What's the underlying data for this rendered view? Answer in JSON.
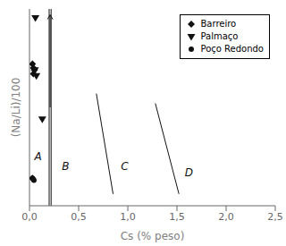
{
  "chart_data": {
    "type": "scatter",
    "xlabel": "Cs (% peso)",
    "ylabel": "(Na/Li)/100",
    "xlim": [
      0.0,
      2.5
    ],
    "ylim": [
      0.0,
      1.0
    ],
    "xticks": [
      {
        "value": 0.0,
        "label": "0,0"
      },
      {
        "value": 0.5,
        "label": "0,5"
      },
      {
        "value": 1.0,
        "label": "1,0"
      },
      {
        "value": 1.5,
        "label": "1,5"
      },
      {
        "value": 2.0,
        "label": "2,0"
      },
      {
        "value": 2.5,
        "label": "2,5"
      }
    ],
    "yticks": [],
    "tick_labels": "x",
    "legend": "upper right",
    "series": [
      {
        "name": "Barreiro",
        "color": "#111111",
        "marker": "diamond",
        "x": [
          0.03,
          0.04,
          0.05,
          0.04,
          0.03
        ],
        "values": [
          0.72,
          0.7,
          0.69,
          0.67,
          0.14
        ]
      },
      {
        "name": "Palmaço",
        "color": "#111111",
        "marker": "triangle_down",
        "x": [
          0.06,
          0.055,
          0.07,
          0.13
        ],
        "values": [
          0.955,
          0.69,
          0.66,
          0.44
        ]
      },
      {
        "name": "Poço Redondo",
        "color": "#111111",
        "marker": "circle",
        "x": [
          0.03,
          0.045
        ],
        "values": [
          0.14,
          0.13
        ]
      }
    ],
    "vlines": {
      "x": [
        0.2,
        0.22
      ],
      "color": "#111111"
    },
    "arrow": {
      "x": 0.21,
      "y": [
        0.5,
        0.97
      ],
      "color": "#111111"
    },
    "boundaries": [
      {
        "x": [
          0.68,
          0.85
        ],
        "y": [
          0.57,
          0.06
        ],
        "color": "#111111"
      },
      {
        "x": [
          1.28,
          1.52
        ],
        "y": [
          0.52,
          0.06
        ],
        "color": "#111111"
      }
    ],
    "annotations": [
      {
        "text": "A",
        "x": 0.05,
        "y": 0.25,
        "color": "#111111"
      },
      {
        "text": "B",
        "x": 0.33,
        "y": 0.2,
        "color": "#111111"
      },
      {
        "text": "C",
        "x": 0.93,
        "y": 0.2,
        "color": "#111111"
      },
      {
        "text": "D",
        "x": 1.58,
        "y": 0.17,
        "color": "#111111"
      }
    ]
  }
}
